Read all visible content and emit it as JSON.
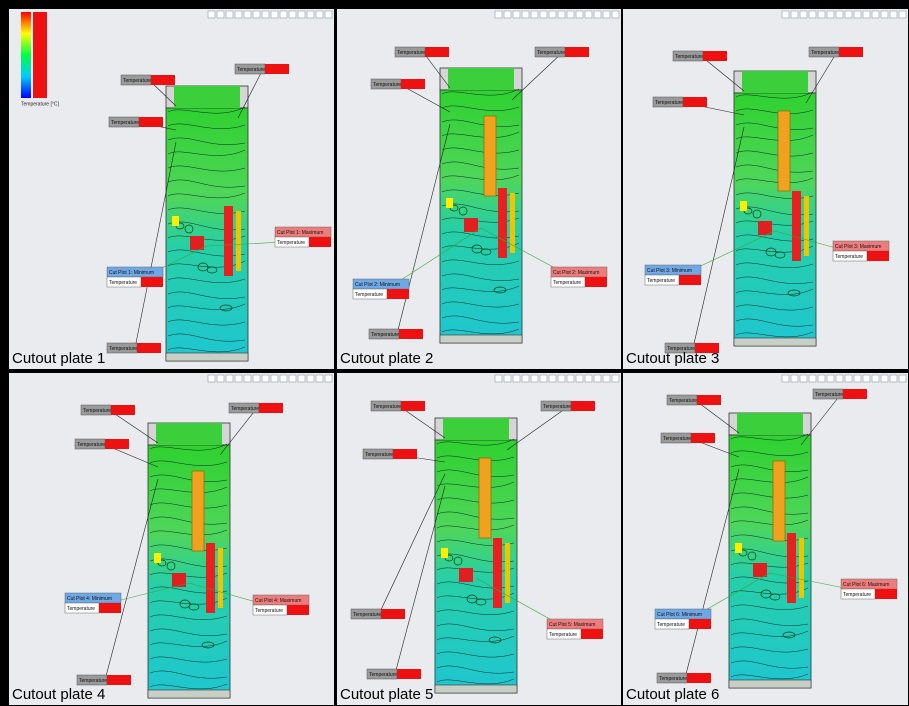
{
  "legend": {
    "title": "Temperature [°C]"
  },
  "panels": [
    {
      "caption": "Cutout plate 1",
      "callouts": [
        "Temperature",
        "Temperature",
        "Temperature",
        "Temperature"
      ],
      "min": {
        "label": "Cut Plot 1: Minimum",
        "field": "Temperature"
      },
      "max": {
        "label": "Cut Plot 1: Maximum",
        "field": "Temperature"
      }
    },
    {
      "caption": "Cutout plate 2",
      "callouts": [
        "Temperature",
        "Temperature",
        "Temperature",
        "Temperature"
      ],
      "min": {
        "label": "Cut Plot 2: Minimum",
        "field": "Temperature"
      },
      "max": {
        "label": "Cut Plot 2: Maximum",
        "field": "Temperature"
      }
    },
    {
      "caption": "Cutout plate 3",
      "callouts": [
        "Temperature",
        "Temperature",
        "Temperature",
        "Temperature"
      ],
      "min": {
        "label": "Cut Plot 3: Minimum",
        "field": "Temperature"
      },
      "max": {
        "label": "Cut Plot 3: Maximum",
        "field": "Temperature"
      }
    },
    {
      "caption": "Cutout plate 4",
      "callouts": [
        "Temperature",
        "Temperature",
        "Temperature",
        "Temperature"
      ],
      "min": {
        "label": "Cut Plot 4: Minimum",
        "field": "Temperature"
      },
      "max": {
        "label": "Cut Plot 4: Maximum",
        "field": "Temperature"
      }
    },
    {
      "caption": "Cutout plate 5",
      "callouts": [
        "Temperature",
        "Temperature",
        "Temperature",
        "Temperature",
        "Temperature"
      ],
      "max": {
        "label": "Cut Plot 5: Maximum",
        "field": "Temperature"
      }
    },
    {
      "caption": "Cutout plate 6",
      "callouts": [
        "Temperature",
        "Temperature",
        "Temperature",
        "Temperature"
      ],
      "min": {
        "label": "Cut Plot 6: Minimum",
        "field": "Temperature"
      },
      "max": {
        "label": "Cut Plot 6: Maximum",
        "field": "Temperature"
      }
    }
  ]
}
